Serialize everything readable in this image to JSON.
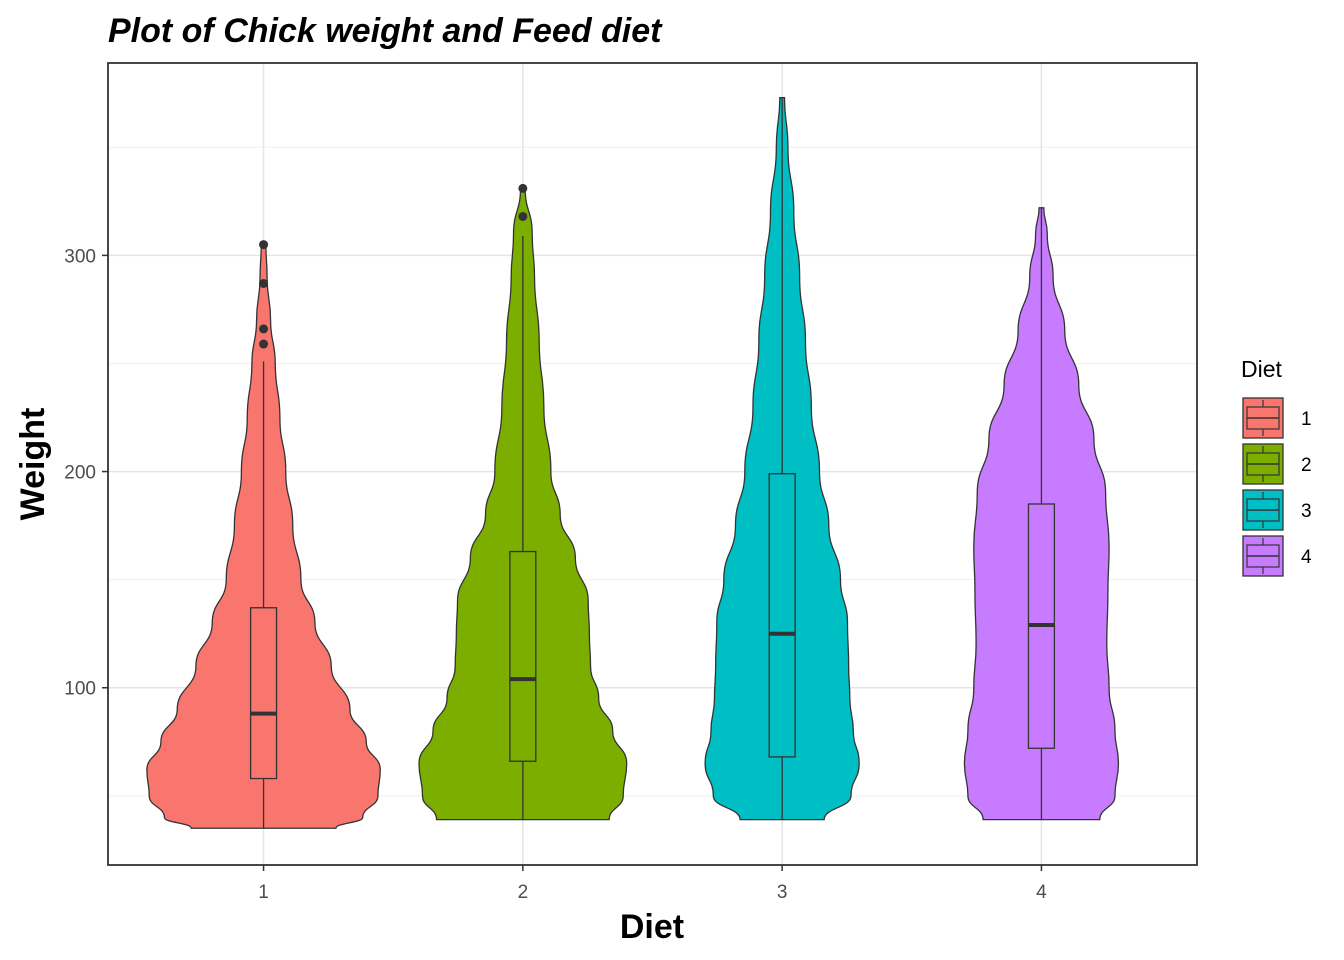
{
  "chart_data": {
    "type": "violin",
    "title": "Plot of Chick weight and Feed diet",
    "xlabel": "Diet",
    "ylabel": "Weight",
    "categories": [
      "1",
      "2",
      "3",
      "4"
    ],
    "ylim": [
      18,
      389
    ],
    "yticks": [
      100,
      200,
      300
    ],
    "grid": true,
    "legend": {
      "title": "Diet",
      "position": "right",
      "entries": [
        "1",
        "2",
        "3",
        "4"
      ]
    },
    "colors": [
      "#F8766D",
      "#7CAE00",
      "#00BFC4",
      "#C77CFF"
    ],
    "series": [
      {
        "name": "1",
        "box": {
          "q1": 58,
          "median": 88,
          "q3": 137,
          "whisker_low": 35,
          "whisker_high": 251
        },
        "outliers": [
          259,
          266,
          287,
          305
        ],
        "violin_profile": [
          [
            35,
            0.62
          ],
          [
            40,
            0.85
          ],
          [
            50,
            0.98
          ],
          [
            62,
            1.0
          ],
          [
            75,
            0.88
          ],
          [
            90,
            0.74
          ],
          [
            110,
            0.58
          ],
          [
            130,
            0.44
          ],
          [
            150,
            0.32
          ],
          [
            175,
            0.25
          ],
          [
            200,
            0.19
          ],
          [
            225,
            0.14
          ],
          [
            250,
            0.1
          ],
          [
            270,
            0.06
          ],
          [
            290,
            0.03
          ],
          [
            305,
            0.02
          ]
        ]
      },
      {
        "name": "2",
        "box": {
          "q1": 66,
          "median": 104,
          "q3": 163,
          "whisker_low": 39,
          "whisker_high": 309
        },
        "outliers": [
          318,
          331
        ],
        "violin_profile": [
          [
            39,
            0.74
          ],
          [
            50,
            0.86
          ],
          [
            65,
            0.89
          ],
          [
            80,
            0.77
          ],
          [
            95,
            0.65
          ],
          [
            110,
            0.58
          ],
          [
            125,
            0.57
          ],
          [
            140,
            0.56
          ],
          [
            160,
            0.45
          ],
          [
            180,
            0.32
          ],
          [
            200,
            0.24
          ],
          [
            230,
            0.18
          ],
          [
            260,
            0.14
          ],
          [
            290,
            0.1
          ],
          [
            310,
            0.08
          ],
          [
            331,
            0.02
          ]
        ]
      },
      {
        "name": "3",
        "box": {
          "q1": 68,
          "median": 125,
          "q3": 199,
          "whisker_low": 39,
          "whisker_high": 373
        },
        "outliers": [],
        "violin_profile": [
          [
            39,
            0.36
          ],
          [
            50,
            0.59
          ],
          [
            65,
            0.66
          ],
          [
            80,
            0.61
          ],
          [
            95,
            0.58
          ],
          [
            110,
            0.57
          ],
          [
            130,
            0.56
          ],
          [
            150,
            0.5
          ],
          [
            175,
            0.4
          ],
          [
            200,
            0.32
          ],
          [
            230,
            0.25
          ],
          [
            260,
            0.2
          ],
          [
            290,
            0.15
          ],
          [
            320,
            0.1
          ],
          [
            350,
            0.05
          ],
          [
            373,
            0.02
          ]
        ]
      },
      {
        "name": "4",
        "box": {
          "q1": 72,
          "median": 129,
          "q3": 185,
          "whisker_low": 39,
          "whisker_high": 322
        },
        "outliers": [],
        "violin_profile": [
          [
            39,
            0.5
          ],
          [
            50,
            0.63
          ],
          [
            65,
            0.66
          ],
          [
            80,
            0.63
          ],
          [
            100,
            0.58
          ],
          [
            120,
            0.56
          ],
          [
            145,
            0.57
          ],
          [
            165,
            0.58
          ],
          [
            190,
            0.55
          ],
          [
            215,
            0.45
          ],
          [
            240,
            0.32
          ],
          [
            265,
            0.2
          ],
          [
            290,
            0.1
          ],
          [
            310,
            0.05
          ],
          [
            322,
            0.02
          ]
        ]
      }
    ]
  }
}
